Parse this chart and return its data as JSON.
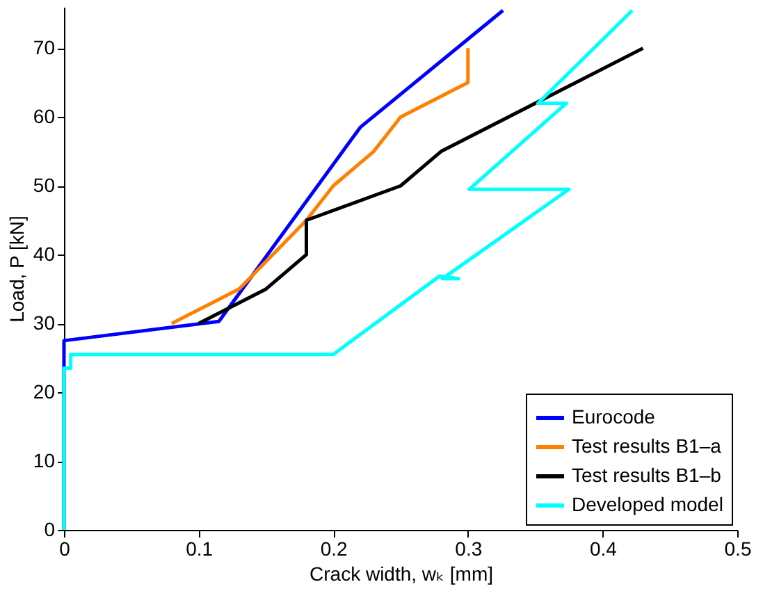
{
  "chart_data": {
    "type": "line",
    "xlabel": "Crack width, wₖ [mm]",
    "ylabel": "Load, P [kN]",
    "xlim": [
      0,
      0.5
    ],
    "ylim": [
      0,
      76
    ],
    "xticks": [
      0,
      0.1,
      0.2,
      0.3,
      0.4,
      0.5
    ],
    "yticks": [
      0,
      10,
      20,
      30,
      40,
      50,
      60,
      70
    ],
    "grid": false,
    "legend": "bottom right",
    "marker": "none",
    "line_style": "solid",
    "series": [
      {
        "name": "Eurocode",
        "color": "#0000ff",
        "x": [
          0,
          0,
          0.115,
          0.22,
          0.326
        ],
        "values": [
          0,
          27.5,
          30.3,
          58.5,
          75.5
        ]
      },
      {
        "name": "Test results B1–a",
        "color": "#ff8000",
        "x": [
          0.08,
          0.13,
          0.18,
          0.2,
          0.23,
          0.25,
          0.3,
          0.3
        ],
        "values": [
          30,
          35,
          45,
          50,
          55,
          60,
          65,
          70
        ]
      },
      {
        "name": "Test results B1–b",
        "color": "#000000",
        "x": [
          0.1,
          0.15,
          0.18,
          0.18,
          0.25,
          0.28,
          0.43
        ],
        "values": [
          30,
          35,
          40,
          45,
          50,
          55,
          70
        ]
      },
      {
        "name": "Developed model",
        "color": "#00ffff",
        "x": [
          0,
          0,
          0.005,
          0.005,
          0.2,
          0.279,
          0.293,
          0.281,
          0.375,
          0.301,
          0.373,
          0.352,
          0.422
        ],
        "values": [
          0,
          23.5,
          23.5,
          25.5,
          25.5,
          36.9,
          36.5,
          36.5,
          49.5,
          49.5,
          62,
          62,
          75.5
        ]
      }
    ]
  }
}
